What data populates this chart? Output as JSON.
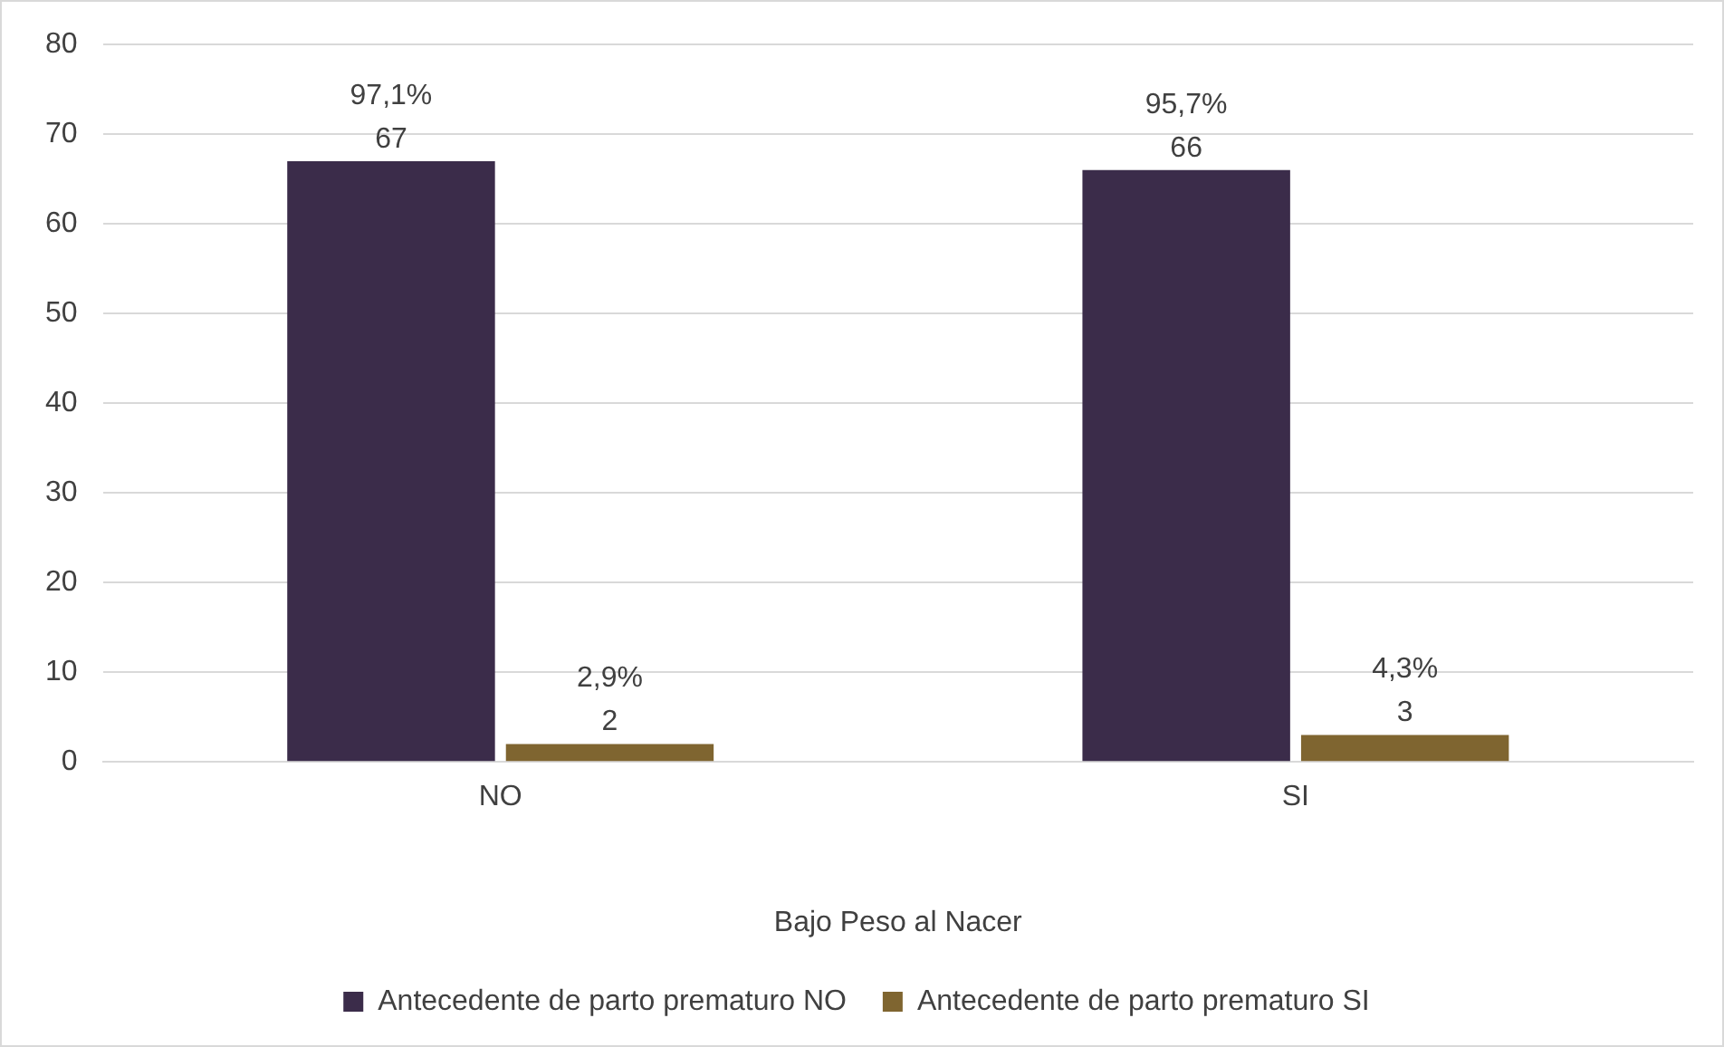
{
  "chart_data": {
    "type": "bar",
    "xlabel": "Bajo Peso al Nacer",
    "categories": [
      "NO",
      "SI"
    ],
    "series": [
      {
        "name": "Antecedente de parto prematuro NO",
        "color": "#3b2c4a",
        "values": [
          67,
          66
        ],
        "value_labels": [
          "97,1%\n67",
          "95,7%\n66"
        ]
      },
      {
        "name": "Antecedente de parto prematuro SI",
        "color": "#7f6530",
        "values": [
          2,
          3
        ],
        "value_labels": [
          "2,9%\n2",
          "4,3%\n3"
        ]
      }
    ],
    "ylim": [
      0,
      80
    ],
    "yticks": [
      0,
      10,
      20,
      30,
      40,
      50,
      60,
      70,
      80
    ],
    "grid": "y",
    "legend": "bottom"
  }
}
